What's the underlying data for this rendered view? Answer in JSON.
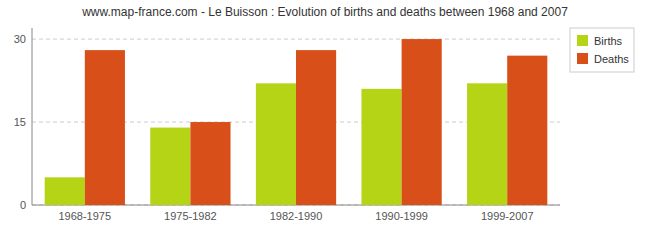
{
  "chart_data": {
    "type": "bar",
    "title": "www.map-france.com - Le Buisson : Evolution of births and deaths between 1968 and 2007",
    "categories": [
      "1968-1975",
      "1975-1982",
      "1982-1990",
      "1990-1999",
      "1999-2007"
    ],
    "series": [
      {
        "name": "Births",
        "color": "#b5d416",
        "values": [
          5,
          14,
          22,
          21,
          22
        ]
      },
      {
        "name": "Deaths",
        "color": "#d94f1a",
        "values": [
          28,
          15,
          28,
          30,
          27
        ]
      }
    ],
    "ylim": [
      0,
      32
    ],
    "yticks": [
      0,
      15,
      30
    ],
    "grid": true,
    "legend": "upper right"
  }
}
